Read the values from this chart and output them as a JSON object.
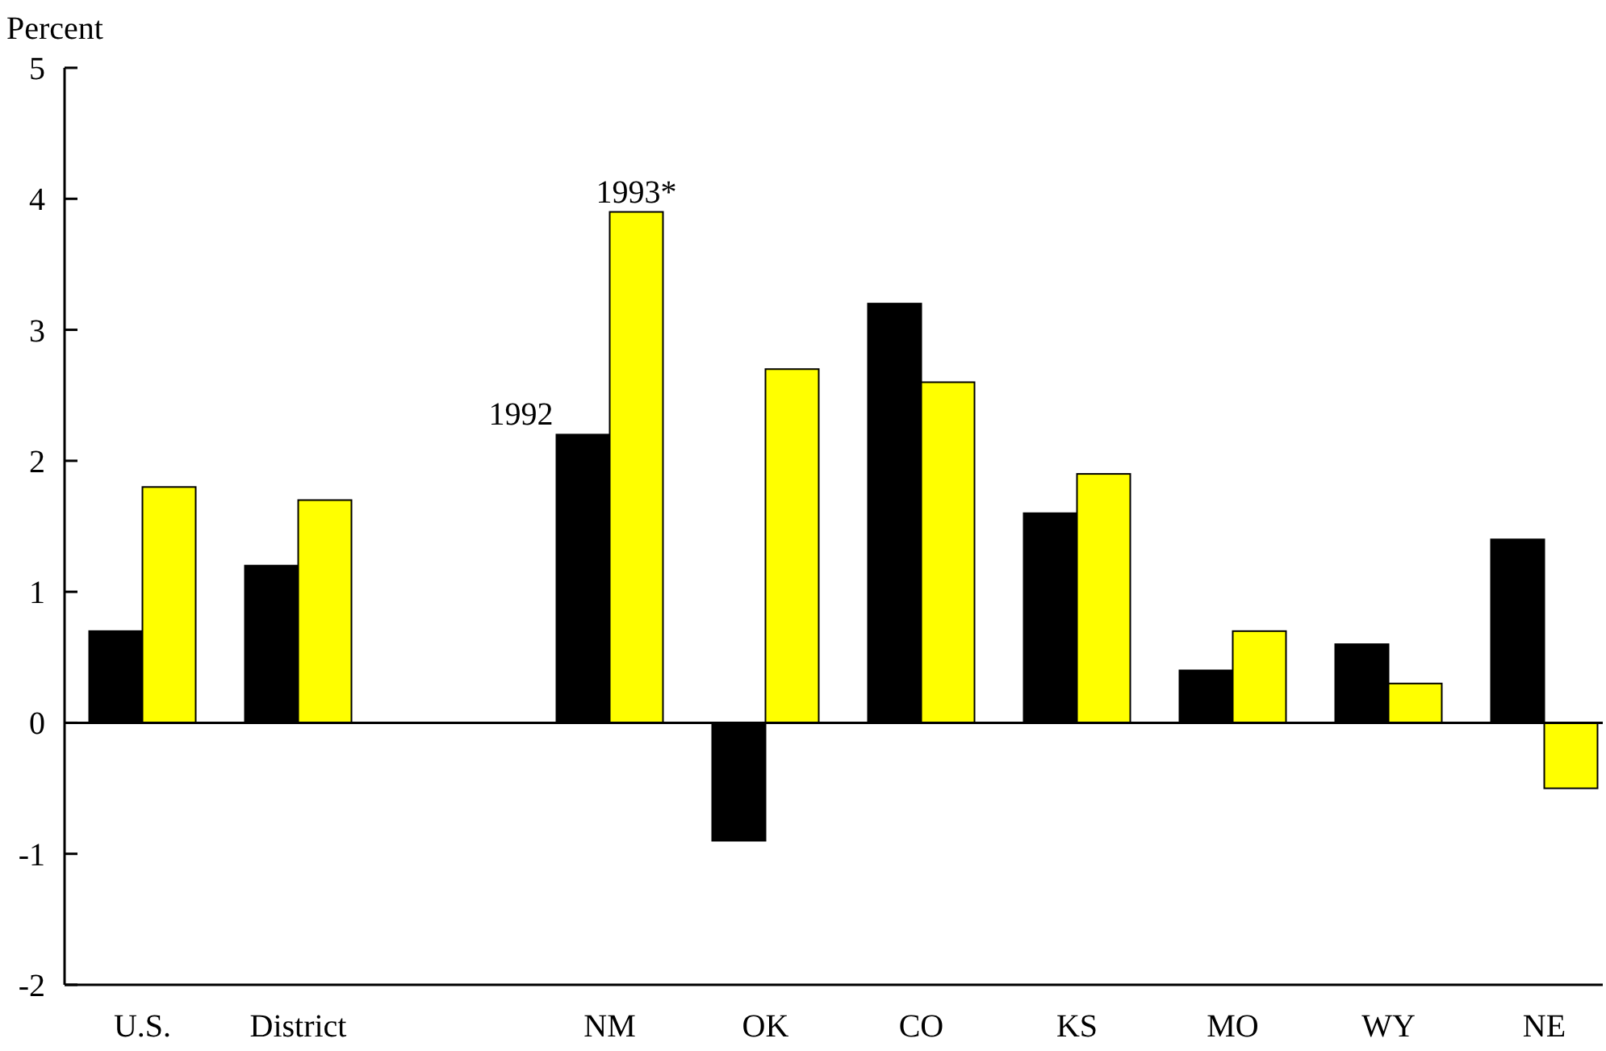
{
  "chart_data": {
    "type": "bar",
    "ylabel": "Percent",
    "categories": [
      "U.S.",
      "District",
      null,
      "NM",
      "OK",
      "CO",
      "KS",
      "MO",
      "WY",
      "NE"
    ],
    "series": [
      {
        "name": "1992",
        "color": "#000000",
        "values": [
          0.7,
          1.2,
          null,
          2.2,
          -0.9,
          3.2,
          1.6,
          0.4,
          0.6,
          1.4
        ]
      },
      {
        "name": "1993*",
        "color": "#ffff00",
        "values": [
          1.8,
          1.7,
          null,
          3.9,
          2.7,
          2.6,
          1.9,
          0.7,
          0.3,
          -0.5
        ]
      }
    ],
    "ylim": [
      -2,
      5
    ],
    "yticks": [
      -2,
      -1,
      0,
      1,
      2,
      3,
      4,
      5
    ]
  }
}
